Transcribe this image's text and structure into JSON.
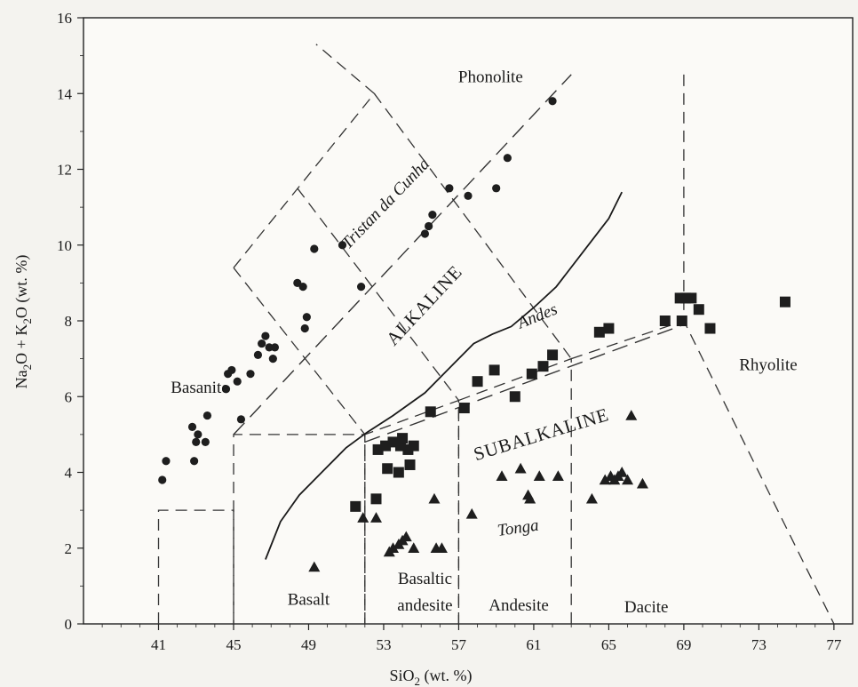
{
  "chart_data": {
    "type": "scatter",
    "title": "",
    "x_axis": {
      "range": [
        37,
        78
      ],
      "ticks": [
        41,
        45,
        49,
        53,
        57,
        61,
        65,
        69,
        73,
        77
      ],
      "label_main": "SiO",
      "label_sub": "2",
      "label_tail": " (wt. %)"
    },
    "y_axis": {
      "range": [
        0,
        16
      ],
      "ticks": [
        0,
        2,
        4,
        6,
        8,
        10,
        12,
        14,
        16
      ],
      "label_parts": [
        "Na",
        "2",
        "O + K",
        "2",
        "O (wt. %)"
      ]
    },
    "series": [
      {
        "name": "",
        "marker": "circle",
        "points": [
          [
            41.2,
            3.8
          ],
          [
            41.4,
            4.3
          ],
          [
            42.8,
            5.2
          ],
          [
            42.9,
            4.3
          ],
          [
            43.0,
            4.8
          ],
          [
            43.1,
            5.0
          ],
          [
            43.5,
            4.8
          ],
          [
            43.6,
            5.5
          ],
          [
            44.6,
            6.2
          ],
          [
            44.7,
            6.6
          ],
          [
            44.9,
            6.7
          ],
          [
            45.2,
            6.4
          ],
          [
            45.4,
            5.4
          ],
          [
            45.9,
            6.6
          ],
          [
            46.3,
            7.1
          ],
          [
            46.5,
            7.4
          ],
          [
            46.7,
            7.6
          ],
          [
            46.9,
            7.3
          ],
          [
            47.1,
            7.0
          ],
          [
            47.2,
            7.3
          ],
          [
            48.4,
            9.0
          ],
          [
            48.7,
            8.9
          ],
          [
            48.8,
            7.8
          ],
          [
            48.9,
            8.1
          ],
          [
            49.3,
            9.9
          ],
          [
            50.8,
            10.0
          ],
          [
            51.8,
            8.9
          ],
          [
            55.2,
            10.3
          ],
          [
            55.4,
            10.5
          ],
          [
            55.6,
            10.8
          ],
          [
            56.5,
            11.5
          ],
          [
            57.5,
            11.3
          ],
          [
            59.0,
            11.5
          ],
          [
            59.6,
            12.3
          ],
          [
            62.0,
            13.8
          ]
        ]
      },
      {
        "name": "",
        "marker": "square",
        "points": [
          [
            51.5,
            3.1
          ],
          [
            52.6,
            3.3
          ],
          [
            52.7,
            4.6
          ],
          [
            53.1,
            4.7
          ],
          [
            53.2,
            4.1
          ],
          [
            53.5,
            4.8
          ],
          [
            53.8,
            4.0
          ],
          [
            53.9,
            4.7
          ],
          [
            54.0,
            4.9
          ],
          [
            54.3,
            4.6
          ],
          [
            54.4,
            4.2
          ],
          [
            54.6,
            4.7
          ],
          [
            55.5,
            5.6
          ],
          [
            57.3,
            5.7
          ],
          [
            58.0,
            6.4
          ],
          [
            58.9,
            6.7
          ],
          [
            60.0,
            6.0
          ],
          [
            60.9,
            6.6
          ],
          [
            61.5,
            6.8
          ],
          [
            62.0,
            7.1
          ],
          [
            64.5,
            7.7
          ],
          [
            65.0,
            7.8
          ],
          [
            68.0,
            8.0
          ],
          [
            68.8,
            8.6
          ],
          [
            68.9,
            8.0
          ],
          [
            69.1,
            8.6
          ],
          [
            69.4,
            8.6
          ],
          [
            69.8,
            8.3
          ],
          [
            70.4,
            7.8
          ],
          [
            74.4,
            8.5
          ]
        ]
      },
      {
        "name": "",
        "marker": "triangle",
        "points": [
          [
            49.3,
            1.5
          ],
          [
            51.9,
            2.8
          ],
          [
            52.6,
            2.8
          ],
          [
            53.3,
            1.9
          ],
          [
            53.5,
            2.0
          ],
          [
            53.8,
            2.1
          ],
          [
            54.0,
            2.2
          ],
          [
            54.2,
            2.3
          ],
          [
            54.6,
            2.0
          ],
          [
            55.7,
            3.3
          ],
          [
            55.8,
            2.0
          ],
          [
            56.1,
            2.0
          ],
          [
            57.7,
            2.9
          ],
          [
            59.3,
            3.9
          ],
          [
            60.3,
            4.1
          ],
          [
            60.7,
            3.4
          ],
          [
            60.8,
            3.3
          ],
          [
            61.3,
            3.9
          ],
          [
            62.3,
            3.9
          ],
          [
            64.1,
            3.3
          ],
          [
            64.8,
            3.8
          ],
          [
            65.1,
            3.9
          ],
          [
            65.3,
            3.8
          ],
          [
            65.5,
            3.9
          ],
          [
            65.7,
            4.0
          ],
          [
            66.0,
            3.8
          ],
          [
            66.2,
            5.5
          ],
          [
            66.8,
            3.7
          ]
        ]
      }
    ],
    "field_labels": [
      {
        "text": "Phonolite",
        "x": 58.7,
        "y": 14.3,
        "style": "field"
      },
      {
        "text": "Basanite",
        "x": 43.2,
        "y": 6.1,
        "style": "field"
      },
      {
        "text": "Basalt",
        "x": 49.0,
        "y": 0.5,
        "style": "field"
      },
      {
        "text": "Basaltic",
        "x": 55.2,
        "y": 1.05,
        "style": "field"
      },
      {
        "text": "andesite",
        "x": 55.2,
        "y": 0.35,
        "style": "field"
      },
      {
        "text": "Andesite",
        "x": 60.2,
        "y": 0.35,
        "style": "field"
      },
      {
        "text": "Dacite",
        "x": 67.0,
        "y": 0.3,
        "style": "field"
      },
      {
        "text": "Rhyolite",
        "x": 73.5,
        "y": 6.7,
        "style": "field"
      },
      {
        "text": "ALKALINE",
        "x": 55.4,
        "y": 8.3,
        "style": "caps",
        "rotate": -47
      },
      {
        "text": "SUBALKALINE",
        "x": 61.5,
        "y": 4.85,
        "style": "caps",
        "rotate": -17
      },
      {
        "text": "Tristan da Cunha",
        "x": 53.3,
        "y": 11.0,
        "style": "ital",
        "rotate": -46
      },
      {
        "text": "Andes",
        "x": 61.3,
        "y": 8.0,
        "style": "ital",
        "rotate": -22
      },
      {
        "text": "Tonga",
        "x": 60.2,
        "y": 2.4,
        "style": "ital",
        "rotate": -8
      }
    ],
    "division_curve": [
      [
        46.7,
        1.7
      ],
      [
        47.5,
        2.7
      ],
      [
        48.5,
        3.4
      ],
      [
        49.7,
        4.0
      ],
      [
        51.0,
        4.65
      ],
      [
        52.1,
        5.05
      ],
      [
        53.5,
        5.5
      ],
      [
        55.2,
        6.1
      ],
      [
        56.7,
        6.85
      ],
      [
        57.8,
        7.4
      ],
      [
        58.8,
        7.65
      ],
      [
        59.8,
        7.85
      ],
      [
        61.0,
        8.35
      ],
      [
        62.2,
        8.9
      ],
      [
        63.6,
        9.8
      ],
      [
        65.0,
        10.7
      ],
      [
        65.7,
        11.4
      ]
    ],
    "trend_lines": [
      {
        "name": "tristan",
        "points": [
          [
            45.0,
            5.0
          ],
          [
            63.0,
            14.5
          ]
        ]
      },
      {
        "name": "andes",
        "points": [
          [
            52.0,
            4.8
          ],
          [
            69.0,
            7.9
          ]
        ]
      }
    ],
    "field_boundaries": [
      [
        [
          41,
          0
        ],
        [
          41,
          3
        ],
        [
          45,
          3
        ],
        [
          45,
          0
        ]
      ],
      [
        [
          45,
          0
        ],
        [
          45,
          5
        ],
        [
          52,
          5
        ],
        [
          52,
          0
        ]
      ],
      [
        [
          52,
          0
        ],
        [
          52,
          5
        ],
        [
          57,
          5.9
        ],
        [
          57,
          0
        ]
      ],
      [
        [
          57,
          0
        ],
        [
          57,
          5.9
        ],
        [
          63,
          7
        ],
        [
          63,
          0
        ]
      ],
      [
        [
          69,
          14.5
        ],
        [
          69,
          8
        ],
        [
          77,
          0
        ]
      ],
      [
        [
          63,
          7
        ],
        [
          69,
          8
        ]
      ],
      [
        [
          45,
          9.4
        ],
        [
          52.5,
          14
        ],
        [
          49.4,
          15.3
        ]
      ],
      [
        [
          45,
          9.4
        ],
        [
          52,
          5
        ]
      ],
      [
        [
          48.4,
          11.5
        ],
        [
          57,
          5.9
        ]
      ],
      [
        [
          52.5,
          14
        ],
        [
          63,
          7
        ]
      ]
    ]
  }
}
